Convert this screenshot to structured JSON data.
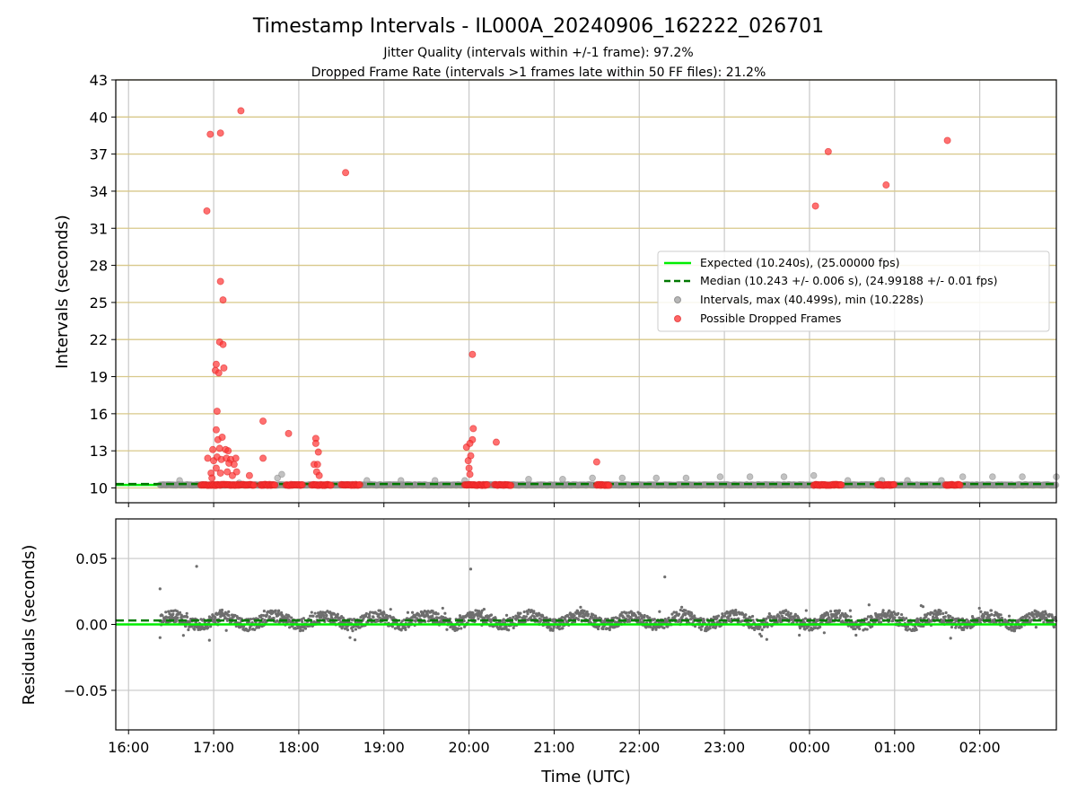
{
  "chart_data": [
    {
      "type": "scatter",
      "title": "Timestamp Intervals - IL000A_20240906_162222_026701",
      "subtitle_lines": [
        "Jitter Quality (intervals within +/-1 frame): 97.2%",
        "Dropped Frame Rate (intervals >1 frames late within 50 FF files): 21.2%"
      ],
      "ylabel": "Intervals (seconds)",
      "ylim": [
        8.8,
        43
      ],
      "yticks": [
        10,
        13,
        16,
        19,
        22,
        25,
        28,
        31,
        34,
        37,
        40,
        43
      ],
      "xlim": [
        15.85,
        26.9
      ],
      "x_ticks": [
        {
          "v": 16,
          "label": "16:00"
        },
        {
          "v": 17,
          "label": "17:00"
        },
        {
          "v": 18,
          "label": "18:00"
        },
        {
          "v": 19,
          "label": "19:00"
        },
        {
          "v": 20,
          "label": "20:00"
        },
        {
          "v": 21,
          "label": "21:00"
        },
        {
          "v": 22,
          "label": "22:00"
        },
        {
          "v": 23,
          "label": "23:00"
        },
        {
          "v": 24,
          "label": "00:00"
        },
        {
          "v": 25,
          "label": "01:00"
        },
        {
          "v": 26,
          "label": "02:00"
        }
      ],
      "grid": "y gridlines tan at y ticks, x gridlines grey",
      "legend": {
        "position": "right",
        "entries": [
          "Expected (10.240s), (25.00000 fps)",
          "Median (10.243 +/- 0.006 s), (24.99188 +/- 0.01 fps)",
          "Intervals, max (40.499s), min (10.228s)",
          "Possible Dropped Frames"
        ]
      },
      "expected_value": 10.24,
      "median_value": 10.243,
      "colors": {
        "expected": "#00ee00",
        "median": "#007700",
        "interval": "#999999",
        "dropped": "#ff3333",
        "grid_y": "#d8c88a",
        "grid_x": "#c8c8c8"
      },
      "intervals_range": [
        16.37,
        26.9
      ],
      "intervals_baseline": 10.24,
      "interval_points": [
        [
          16.6,
          10.6
        ],
        [
          17.75,
          10.8
        ],
        [
          17.8,
          11.1
        ],
        [
          18.8,
          10.6
        ],
        [
          19.2,
          10.6
        ],
        [
          19.6,
          10.6
        ],
        [
          19.95,
          10.6
        ],
        [
          20.7,
          10.7
        ],
        [
          21.1,
          10.7
        ],
        [
          21.45,
          10.8
        ],
        [
          21.8,
          10.8
        ],
        [
          22.2,
          10.8
        ],
        [
          22.55,
          10.8
        ],
        [
          22.95,
          10.9
        ],
        [
          23.3,
          10.9
        ],
        [
          23.7,
          10.9
        ],
        [
          24.05,
          11.0
        ],
        [
          24.45,
          10.6
        ],
        [
          24.85,
          10.6
        ],
        [
          25.15,
          10.6
        ],
        [
          25.55,
          10.6
        ],
        [
          25.8,
          10.9
        ],
        [
          26.15,
          10.9
        ],
        [
          26.5,
          10.9
        ],
        [
          26.9,
          10.9
        ],
        [
          17.3,
          10.4
        ]
      ],
      "dropped_points": [
        [
          16.92,
          32.4
        ],
        [
          16.96,
          38.6
        ],
        [
          17.08,
          38.7
        ],
        [
          17.32,
          40.5
        ],
        [
          18.55,
          35.5
        ],
        [
          24.07,
          32.8
        ],
        [
          24.22,
          37.2
        ],
        [
          24.9,
          34.5
        ],
        [
          25.62,
          38.1
        ],
        [
          17.08,
          26.7
        ],
        [
          17.11,
          25.2
        ],
        [
          17.07,
          21.8
        ],
        [
          17.11,
          21.6
        ],
        [
          17.03,
          20.0
        ],
        [
          17.02,
          19.5
        ],
        [
          17.06,
          19.3
        ],
        [
          17.12,
          19.7
        ],
        [
          17.04,
          16.2
        ],
        [
          17.03,
          14.7
        ],
        [
          17.05,
          13.9
        ],
        [
          17.1,
          14.1
        ],
        [
          16.99,
          13.1
        ],
        [
          17.07,
          13.2
        ],
        [
          17.14,
          13.1
        ],
        [
          17.17,
          13.0
        ],
        [
          16.93,
          12.4
        ],
        [
          17.0,
          12.2
        ],
        [
          17.04,
          12.5
        ],
        [
          17.09,
          12.3
        ],
        [
          17.15,
          12.4
        ],
        [
          17.2,
          12.3
        ],
        [
          17.26,
          12.4
        ],
        [
          17.18,
          12.0
        ],
        [
          17.24,
          11.9
        ],
        [
          16.97,
          11.2
        ],
        [
          17.03,
          11.6
        ],
        [
          17.08,
          11.2
        ],
        [
          17.16,
          11.3
        ],
        [
          17.22,
          11.0
        ],
        [
          17.27,
          11.3
        ],
        [
          17.42,
          11.0
        ],
        [
          16.98,
          10.8
        ],
        [
          17.58,
          15.4
        ],
        [
          17.58,
          12.4
        ],
        [
          17.88,
          14.4
        ],
        [
          18.2,
          14.0
        ],
        [
          18.2,
          13.6
        ],
        [
          18.23,
          12.9
        ],
        [
          18.18,
          11.9
        ],
        [
          18.22,
          11.9
        ],
        [
          18.21,
          11.3
        ],
        [
          18.24,
          11.0
        ],
        [
          20.04,
          20.8
        ],
        [
          20.05,
          14.8
        ],
        [
          20.04,
          13.9
        ],
        [
          19.97,
          13.3
        ],
        [
          20.01,
          13.6
        ],
        [
          20.02,
          12.6
        ],
        [
          19.99,
          12.2
        ],
        [
          20.0,
          11.6
        ],
        [
          20.01,
          11.1
        ],
        [
          20.32,
          13.7
        ],
        [
          21.5,
          12.1
        ]
      ],
      "dropped_baseline_ranges": [
        [
          16.85,
          17.48
        ],
        [
          17.55,
          17.72
        ],
        [
          17.85,
          18.05
        ],
        [
          18.15,
          18.38
        ],
        [
          18.5,
          18.72
        ],
        [
          19.95,
          20.22
        ],
        [
          20.3,
          20.5
        ],
        [
          21.5,
          21.65
        ],
        [
          24.05,
          24.38
        ],
        [
          24.8,
          25.0
        ],
        [
          25.6,
          25.78
        ]
      ]
    },
    {
      "type": "scatter",
      "ylabel": "Residuals (seconds)",
      "xlabel": "Time (UTC)",
      "ylim": [
        -0.08,
        0.08
      ],
      "yticks": [
        {
          "v": 0.05,
          "label": "0.05"
        },
        {
          "v": 0.0,
          "label": "0.00"
        },
        {
          "v": -0.05,
          "label": "−0.05"
        }
      ],
      "expected_residual": 0.0,
      "median_residual": 0.003,
      "residual_outliers": [
        [
          16.37,
          0.027
        ],
        [
          16.8,
          0.044
        ],
        [
          20.02,
          0.042
        ],
        [
          22.3,
          0.036
        ],
        [
          16.95,
          -0.012
        ],
        [
          16.37,
          -0.01
        ]
      ],
      "residual_band": {
        "x_range": [
          16.37,
          26.9
        ],
        "center": 0.003,
        "spread": 0.009
      },
      "colors": {
        "residual": "#6e6e6e",
        "expected": "#00ee00",
        "median": "#007700"
      }
    }
  ]
}
